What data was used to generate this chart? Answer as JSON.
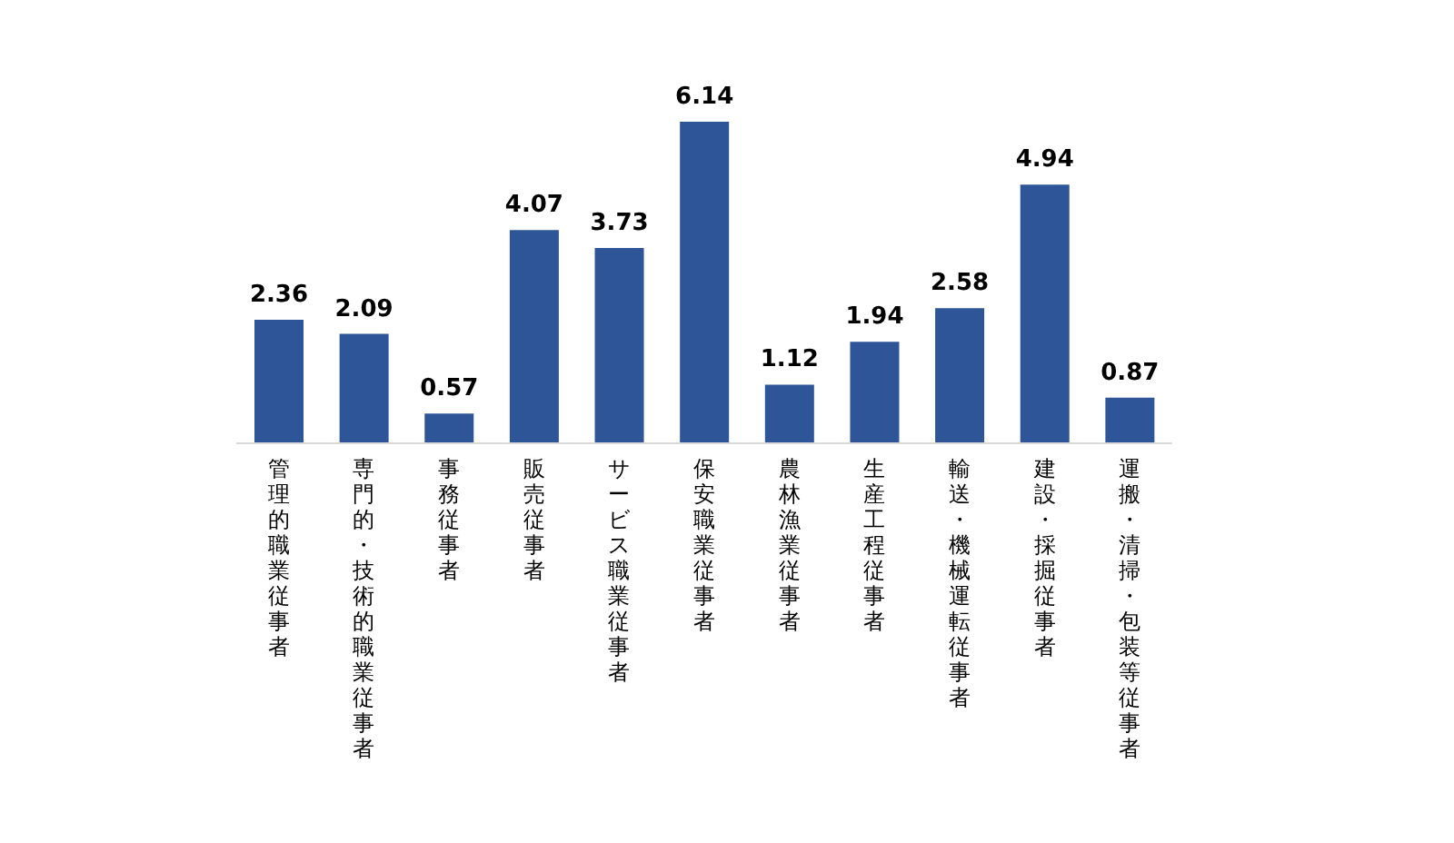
{
  "chart_data": {
    "type": "bar",
    "categories": [
      "管理的職業従事者",
      "専門的・技術的職業従事者",
      "事務従事者",
      "販売従事者",
      "サービス職業従事者",
      "保安職業従事者",
      "農林漁業従事者",
      "生産工程従事者",
      "輸送・機械運転従事者",
      "建設・採掘従事者",
      "運搬・清掃・包装等従事者"
    ],
    "values": [
      2.36,
      2.09,
      0.57,
      4.07,
      3.73,
      6.14,
      1.12,
      1.94,
      2.58,
      4.94,
      0.87
    ],
    "color": "#2e5597",
    "data_labels": true,
    "grid": false,
    "legend": false
  }
}
